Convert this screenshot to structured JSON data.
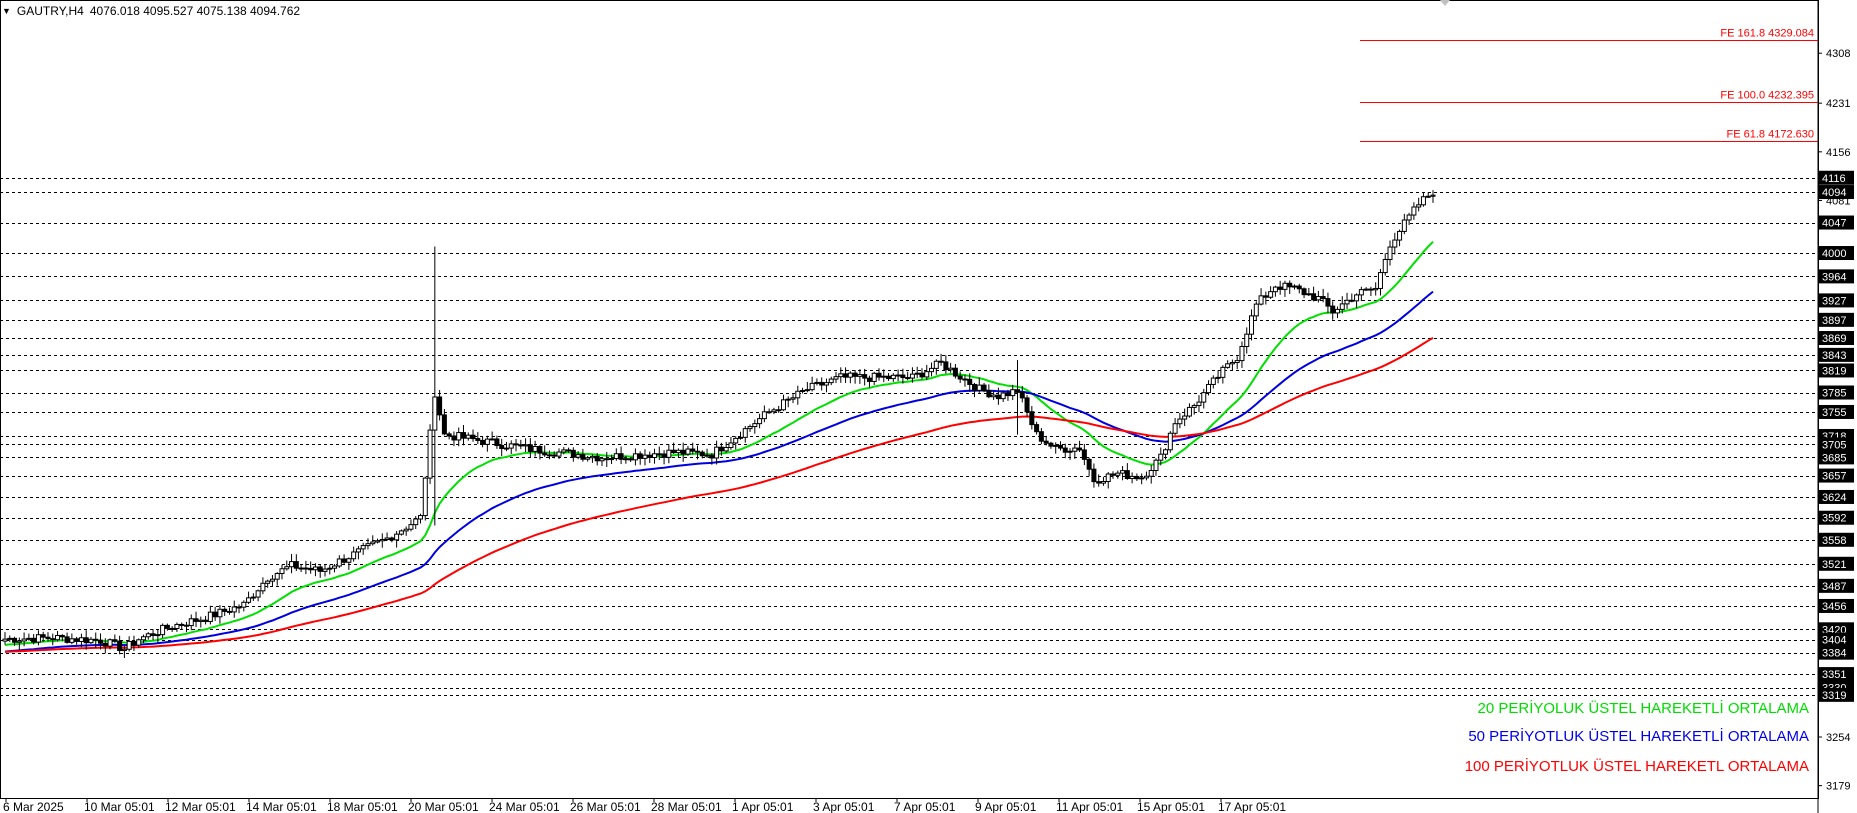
{
  "header": {
    "symbol": "GAUTRY,H4",
    "ohlc": "4076.018 4095.527 4075.138 4094.762"
  },
  "colors": {
    "bull": "#ffffff",
    "bear": "#000000",
    "ema20": "#00e000",
    "ema50": "#0000e0",
    "ema100": "#ff0000",
    "fe": "#ff0000",
    "level": "#000000"
  },
  "legend": [
    {
      "label": "20 PERİYOLUK ÜSTEL HAREKETLİ ORTALAMA",
      "color": "#00dd00"
    },
    {
      "label": "50 PERİYOTLUK ÜSTEL HAREKETLİ ORTALAMA",
      "color": "#0000ee"
    },
    {
      "label": "100 PERİYOTLUK ÜSTEL HAREKETL ORTALAMA",
      "color": "#ff0000"
    }
  ],
  "chart_data": {
    "type": "candlestick",
    "symbol": "GAUTRY",
    "timeframe": "H4",
    "ylim": [
      3160,
      4390
    ],
    "y_ticks": [
      "4308",
      "4231",
      "4156",
      "4081",
      "3254",
      "3179"
    ],
    "x_ticks": [
      "6 Mar 2025",
      "10 Mar 05:01",
      "12 Mar 05:01",
      "14 Mar 05:01",
      "18 Mar 05:01",
      "20 Mar 05:01",
      "24 Mar 05:01",
      "26 Mar 05:01",
      "28 Mar 05:01",
      "1 Apr 05:01",
      "3 Apr 05:01",
      "7 Apr 05:01",
      "9 Apr 05:01",
      "11 Apr 05:01",
      "15 Apr 05:01",
      "17 Apr 05:01"
    ],
    "horizontal_levels": [
      "4116",
      "4094",
      "4047",
      "4000",
      "3964",
      "3927",
      "3897",
      "3869",
      "3843",
      "3819",
      "3785",
      "3755",
      "3718",
      "3705",
      "3685",
      "3657",
      "3624",
      "3592",
      "3558",
      "3521",
      "3487",
      "3456",
      "3420",
      "3404",
      "3384",
      "3351",
      "3330",
      "3319"
    ],
    "fibonacci_extensions": [
      {
        "label": "FE 161.8 4329.084",
        "value": 4329.084
      },
      {
        "label": "FE 100.0 4232.395",
        "value": 4232.395
      },
      {
        "label": "FE 61.8 4172.630",
        "value": 4172.63
      }
    ],
    "close_keypoints": [
      [
        0,
        3405
      ],
      [
        10,
        3407
      ],
      [
        20,
        3403
      ],
      [
        25,
        3390
      ],
      [
        28,
        3405
      ],
      [
        35,
        3425
      ],
      [
        42,
        3438
      ],
      [
        50,
        3458
      ],
      [
        55,
        3500
      ],
      [
        60,
        3518
      ],
      [
        66,
        3510
      ],
      [
        70,
        3525
      ],
      [
        80,
        3560
      ],
      [
        87,
        3592
      ],
      [
        90,
        3785
      ],
      [
        92,
        3720
      ],
      [
        97,
        3714
      ],
      [
        110,
        3698
      ],
      [
        125,
        3685
      ],
      [
        140,
        3693
      ],
      [
        148,
        3690
      ],
      [
        160,
        3755
      ],
      [
        168,
        3790
      ],
      [
        175,
        3808
      ],
      [
        190,
        3808
      ],
      [
        196,
        3830
      ],
      [
        200,
        3810
      ],
      [
        204,
        3790
      ],
      [
        208,
        3780
      ],
      [
        212,
        3788
      ],
      [
        216,
        3720
      ],
      [
        220,
        3698
      ],
      [
        225,
        3700
      ],
      [
        228,
        3650
      ],
      [
        233,
        3660
      ],
      [
        238,
        3655
      ],
      [
        242,
        3685
      ],
      [
        245,
        3740
      ],
      [
        249,
        3765
      ],
      [
        254,
        3810
      ],
      [
        258,
        3840
      ],
      [
        262,
        3920
      ],
      [
        266,
        3950
      ],
      [
        270,
        3945
      ],
      [
        275,
        3930
      ],
      [
        278,
        3910
      ],
      [
        283,
        3937
      ],
      [
        287,
        3945
      ],
      [
        290,
        4015
      ],
      [
        293,
        4045
      ],
      [
        296,
        4075
      ],
      [
        299,
        4095
      ]
    ],
    "series": [
      {
        "name": "20 PERİYOLUK ÜSTEL HAREKETLİ ORTALAMA",
        "period": 20
      },
      {
        "name": "50 PERİYOTLUK ÜSTEL HAREKETLİ ORTALAMA",
        "period": 50
      },
      {
        "name": "100 PERİYOTLUK ÜSTEL HAREKETL ORTALAMA",
        "period": 100
      }
    ]
  }
}
